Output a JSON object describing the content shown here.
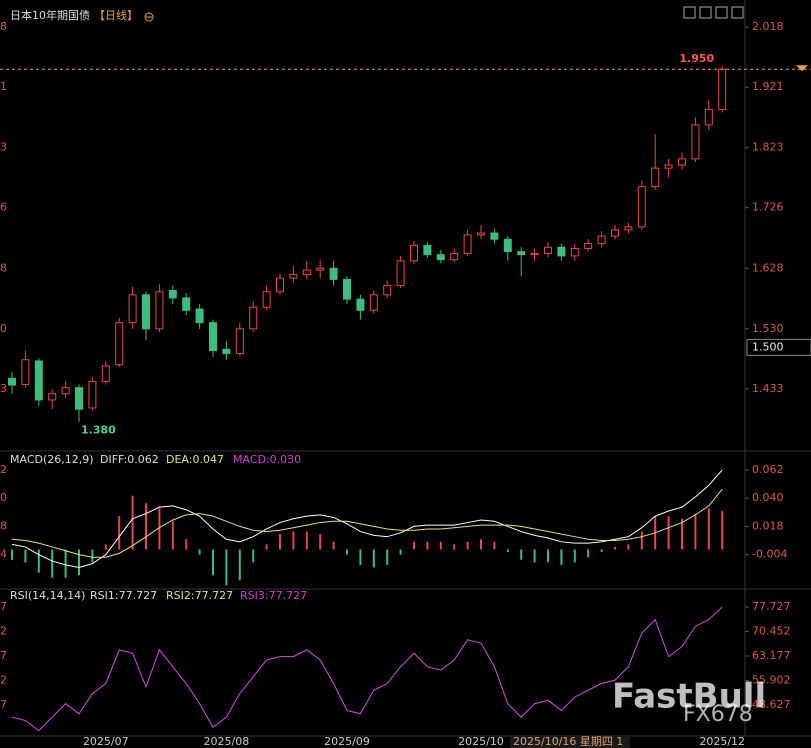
{
  "chart_data": [
    {
      "type": "candlestick",
      "title": "日本10年期国债",
      "subtitle": "【日线】",
      "up_color": "#e8474a",
      "down_color": "#3dbd7d",
      "ylim": [
        1.334,
        2.062
      ],
      "yticks": [
        2.018,
        1.921,
        1.823,
        1.726,
        1.628,
        {
          "value": 1.53,
          "label": "1.530"
        },
        1.433
      ],
      "categories": [
        null,
        null,
        null,
        null,
        null,
        null,
        null,
        "2025/07",
        null,
        null,
        null,
        null,
        null,
        null,
        null,
        null,
        "2025/08",
        null,
        null,
        null,
        null,
        null,
        null,
        null,
        null,
        "2025/09",
        null,
        null,
        null,
        null,
        null,
        null,
        null,
        null,
        null,
        "2025/10",
        null,
        null,
        null,
        null,
        null,
        null,
        null,
        null,
        null,
        null,
        null,
        null,
        null,
        null,
        null,
        null,
        null,
        "2025/12"
      ],
      "candles": [
        [
          1.45,
          1.46,
          1.425,
          1.439
        ],
        [
          1.44,
          1.495,
          1.435,
          1.48
        ],
        [
          1.478,
          1.482,
          1.405,
          1.415
        ],
        [
          1.415,
          1.432,
          1.4,
          1.425
        ],
        [
          1.425,
          1.445,
          1.418,
          1.435
        ],
        [
          1.435,
          1.44,
          1.38,
          1.4
        ],
        [
          1.402,
          1.452,
          1.398,
          1.445
        ],
        [
          1.445,
          1.478,
          1.44,
          1.47
        ],
        [
          1.472,
          1.548,
          1.468,
          1.54
        ],
        [
          1.54,
          1.598,
          1.53,
          1.585
        ],
        [
          1.585,
          1.59,
          1.512,
          1.53
        ],
        [
          1.53,
          1.602,
          1.525,
          1.59
        ],
        [
          1.592,
          1.6,
          1.57,
          1.58
        ],
        [
          1.58,
          1.588,
          1.552,
          1.56
        ],
        [
          1.562,
          1.57,
          1.53,
          1.54
        ],
        [
          1.54,
          1.545,
          1.485,
          1.495
        ],
        [
          1.497,
          1.51,
          1.48,
          1.49
        ],
        [
          1.49,
          1.54,
          1.486,
          1.53
        ],
        [
          1.53,
          1.575,
          1.525,
          1.565
        ],
        [
          1.565,
          1.6,
          1.56,
          1.59
        ],
        [
          1.59,
          1.62,
          1.585,
          1.612
        ],
        [
          1.612,
          1.632,
          1.605,
          1.618
        ],
        [
          1.618,
          1.64,
          1.61,
          1.625
        ],
        [
          1.625,
          1.642,
          1.612,
          1.628
        ],
        [
          1.628,
          1.64,
          1.6,
          1.61
        ],
        [
          1.61,
          1.615,
          1.57,
          1.578
        ],
        [
          1.578,
          1.585,
          1.545,
          1.56
        ],
        [
          1.56,
          1.592,
          1.555,
          1.585
        ],
        [
          1.585,
          1.608,
          1.58,
          1.6
        ],
        [
          1.6,
          1.648,
          1.596,
          1.64
        ],
        [
          1.64,
          1.672,
          1.635,
          1.665
        ],
        [
          1.665,
          1.67,
          1.645,
          1.65
        ],
        [
          1.65,
          1.658,
          1.636,
          1.642
        ],
        [
          1.642,
          1.66,
          1.638,
          1.652
        ],
        [
          1.652,
          1.69,
          1.648,
          1.682
        ],
        [
          1.682,
          1.698,
          1.675,
          1.685
        ],
        [
          1.685,
          1.692,
          1.668,
          1.675
        ],
        [
          1.675,
          1.68,
          1.64,
          1.655
        ],
        [
          1.655,
          1.662,
          1.615,
          1.65
        ],
        [
          1.65,
          1.66,
          1.64,
          1.652
        ],
        [
          1.652,
          1.67,
          1.646,
          1.662
        ],
        [
          1.662,
          1.668,
          1.64,
          1.648
        ],
        [
          1.648,
          1.668,
          1.64,
          1.66
        ],
        [
          1.66,
          1.675,
          1.655,
          1.668
        ],
        [
          1.668,
          1.688,
          1.662,
          1.68
        ],
        [
          1.68,
          1.698,
          1.675,
          1.69
        ],
        [
          1.69,
          1.702,
          1.684,
          1.695
        ],
        [
          1.695,
          1.77,
          1.69,
          1.76
        ],
        [
          1.76,
          1.845,
          1.755,
          1.79
        ],
        [
          1.79,
          1.805,
          1.775,
          1.795
        ],
        [
          1.795,
          1.815,
          1.788,
          1.805
        ],
        [
          1.805,
          1.872,
          1.8,
          1.86
        ],
        [
          1.86,
          1.9,
          1.852,
          1.885
        ],
        [
          1.885,
          1.955,
          1.88,
          1.95
        ]
      ],
      "low_marker": {
        "value": 1.38,
        "label": "1.380"
      },
      "last_price": {
        "value": 1.95,
        "label": "1.950"
      },
      "crosshair_price": {
        "value": 1.5,
        "label": "1.500"
      },
      "crosshair_date": "2025/10/16 星期四 1",
      "watermark": [
        "FastBull",
        "FX678"
      ]
    },
    {
      "type": "macd",
      "title": "MACD(26,12,9)",
      "legend": [
        "DIFF:0.062",
        "DEA:0.047",
        "MACD:0.030"
      ],
      "ylim": [
        -0.03,
        0.076
      ],
      "yticks": [
        0.062,
        {
          "value": 0.04,
          "label": "0.040"
        },
        0.018,
        -0.004
      ],
      "series": [
        {
          "name": "DIFF",
          "color": "#ffffff",
          "values": [
            0.004,
            0.002,
            -0.004,
            -0.009,
            -0.012,
            -0.014,
            -0.011,
            -0.004,
            0.01,
            0.024,
            0.028,
            0.033,
            0.034,
            0.031,
            0.026,
            0.016,
            0.008,
            0.006,
            0.01,
            0.016,
            0.021,
            0.024,
            0.026,
            0.027,
            0.025,
            0.02,
            0.014,
            0.011,
            0.01,
            0.013,
            0.018,
            0.019,
            0.019,
            0.019,
            0.021,
            0.023,
            0.022,
            0.018,
            0.014,
            0.011,
            0.009,
            0.006,
            0.005,
            0.005,
            0.006,
            0.008,
            0.01,
            0.017,
            0.026,
            0.03,
            0.033,
            0.041,
            0.05,
            0.062
          ]
        },
        {
          "name": "DEA",
          "color": "#e6e07a",
          "values": [
            0.008,
            0.007,
            0.005,
            0.002,
            -0.001,
            -0.004,
            -0.006,
            -0.006,
            -0.003,
            0.003,
            0.01,
            0.017,
            0.023,
            0.027,
            0.028,
            0.026,
            0.022,
            0.018,
            0.015,
            0.014,
            0.015,
            0.017,
            0.019,
            0.021,
            0.022,
            0.022,
            0.02,
            0.018,
            0.016,
            0.015,
            0.015,
            0.016,
            0.016,
            0.017,
            0.018,
            0.019,
            0.019,
            0.019,
            0.018,
            0.016,
            0.014,
            0.012,
            0.01,
            0.008,
            0.007,
            0.007,
            0.008,
            0.01,
            0.013,
            0.017,
            0.021,
            0.027,
            0.034,
            0.047
          ]
        },
        {
          "name": "MACD",
          "color": "#d040d0",
          "values": [
            -0.008,
            -0.01,
            -0.018,
            -0.022,
            -0.022,
            -0.02,
            -0.01,
            0.004,
            0.026,
            0.042,
            0.036,
            0.032,
            0.022,
            0.008,
            -0.004,
            -0.02,
            -0.028,
            -0.024,
            -0.01,
            0.004,
            0.012,
            0.014,
            0.014,
            0.012,
            0.006,
            -0.004,
            -0.012,
            -0.014,
            -0.012,
            -0.004,
            0.006,
            0.006,
            0.006,
            0.004,
            0.006,
            0.008,
            0.006,
            -0.002,
            -0.008,
            -0.01,
            -0.01,
            -0.012,
            -0.01,
            -0.006,
            -0.002,
            0.002,
            0.004,
            0.014,
            0.026,
            0.026,
            0.024,
            0.028,
            0.032,
            0.03
          ]
        }
      ]
    },
    {
      "type": "line",
      "title": "RSI(14,14,14)",
      "legend": [
        "RSI1:77.727",
        "RSI2:77.727",
        "RSI3:77.727"
      ],
      "ylim": [
        39.4,
        82.8
      ],
      "yticks": [
        77.727,
        70.452,
        63.177,
        55.902,
        48.627
      ],
      "series": [
        {
          "name": "RSI",
          "color": "#d34fe0",
          "values": [
            45,
            44,
            41,
            45,
            49,
            46,
            52,
            55,
            65,
            64,
            54,
            65,
            60,
            55,
            49,
            42,
            45,
            52,
            57,
            62,
            63,
            63,
            65,
            62,
            55,
            47,
            46,
            53,
            55,
            60,
            64,
            60,
            59,
            62,
            68,
            67,
            60,
            49,
            45,
            49,
            50,
            47,
            51,
            53,
            55,
            56,
            60,
            70,
            74,
            63,
            66,
            72,
            74,
            77.727
          ]
        }
      ]
    }
  ]
}
